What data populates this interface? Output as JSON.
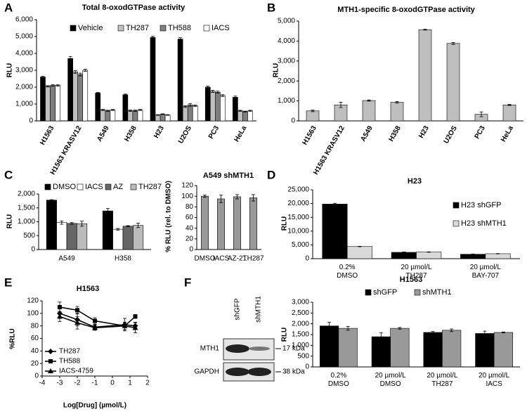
{
  "panel_labels": [
    "A",
    "B",
    "C",
    "D",
    "E",
    "F"
  ],
  "chart_data": [
    {
      "type": "bar",
      "title": "Total 8-oxodGTPase activity",
      "y_label": "RLU",
      "categories": [
        "H1563",
        "H1563 KRASV12",
        "A549",
        "H358",
        "H23",
        "U2OS",
        "PC3",
        "HeLa"
      ],
      "series": [
        {
          "name": "Vehicle",
          "color": "#000000",
          "values": [
            2600,
            3700,
            1650,
            1550,
            4950,
            4850,
            2000,
            1400
          ],
          "errors": [
            40,
            120,
            40,
            40,
            60,
            80,
            60,
            70
          ]
        },
        {
          "name": "TH287",
          "color": "#bfbfbf",
          "values": [
            2050,
            2900,
            650,
            600,
            350,
            850,
            1750,
            600
          ],
          "errors": [
            40,
            80,
            30,
            40,
            20,
            50,
            60,
            30
          ]
        },
        {
          "name": "TH588",
          "color": "#7f7f7f",
          "values": [
            2100,
            2750,
            600,
            600,
            400,
            950,
            1700,
            550
          ],
          "errors": [
            40,
            80,
            30,
            40,
            20,
            80,
            60,
            30
          ]
        },
        {
          "name": "IACS",
          "color": "#ffffff",
          "values": [
            2100,
            3000,
            650,
            650,
            350,
            900,
            1500,
            600
          ],
          "errors": [
            40,
            60,
            30,
            30,
            20,
            40,
            50,
            30
          ]
        }
      ],
      "ylim": [
        0,
        6000
      ],
      "yticks": [
        0,
        {
          "value": 1000,
          "label": "1,000"
        },
        {
          "value": 2000,
          "label": "2,000"
        },
        {
          "value": 3000,
          "label": "3,000"
        },
        {
          "value": 4000,
          "label": "4,000"
        },
        {
          "value": 5000,
          "label": "5,000"
        },
        {
          "value": 6000,
          "label": "6,000"
        }
      ]
    },
    {
      "type": "bar",
      "title": "MTH1-specific 8-oxodGTPase activity",
      "y_label": "RLU",
      "categories": [
        "H1563",
        "H1563 KRASV12",
        "A549",
        "H358",
        "H23",
        "U2OS",
        "PC3",
        "HeLa"
      ],
      "color": "#bfbfbf",
      "values": [
        500,
        800,
        1020,
        930,
        4570,
        3880,
        330,
        800
      ],
      "errors": [
        40,
        130,
        30,
        40,
        20,
        50,
        120,
        30
      ],
      "ylim": [
        0,
        5000
      ],
      "yticks": [
        0,
        {
          "value": 1000,
          "label": "1,000"
        },
        {
          "value": 2000,
          "label": "2,000"
        },
        {
          "value": 3000,
          "label": "3,000"
        },
        {
          "value": 4000,
          "label": "4,000"
        },
        {
          "value": 5000,
          "label": "5,000"
        }
      ]
    },
    {
      "type": "bar",
      "y_label": "RLU",
      "categories": [
        "A549",
        "H358"
      ],
      "series": [
        {
          "name": "DMSO",
          "color": "#000000",
          "values": [
            1780,
            1390
          ],
          "errors": [
            15,
            90
          ]
        },
        {
          "name": "IACS",
          "color": "#ffffff",
          "values": [
            970,
            730
          ],
          "errors": [
            60,
            30
          ]
        },
        {
          "name": "AZ",
          "color": "#666666",
          "values": [
            940,
            840
          ],
          "errors": [
            30,
            20
          ]
        },
        {
          "name": "TH287",
          "color": "#bbbbbb",
          "values": [
            930,
            870
          ],
          "errors": [
            90,
            80
          ]
        }
      ],
      "ylim": [
        0,
        2000
      ],
      "yticks": [
        0,
        500,
        {
          "value": 1000,
          "label": "1,000"
        },
        {
          "value": 1500,
          "label": "1,500"
        },
        {
          "value": 2000,
          "label": "2,000"
        }
      ]
    },
    {
      "type": "bar",
      "title": "A549 shMTH1",
      "y_label": "% RLU (rel. to DMSO)",
      "categories": [
        "DMSO",
        "IACS",
        "AZ-21",
        "TH287"
      ],
      "color": "#999999",
      "values": [
        100,
        95,
        99,
        97
      ],
      "errors": [
        2,
        7,
        4,
        6
      ],
      "ylim": [
        0,
        120
      ],
      "yticks": [
        0,
        20,
        40,
        60,
        80,
        100,
        120
      ]
    },
    {
      "type": "bar",
      "title": "H23",
      "y_label": "RLU",
      "categories": [
        [
          "0.2%",
          "DMSO"
        ],
        [
          "20 µmol/L",
          "TH287"
        ],
        [
          "20 µmol/L",
          "BAY-707"
        ]
      ],
      "series": [
        {
          "name": "H23 shGFP",
          "color": "#000000",
          "values": [
            19800,
            2300,
            1600
          ],
          "errors": [
            300,
            150,
            100
          ]
        },
        {
          "name": "H23 shMTH1",
          "color": "#d9d9d9",
          "values": [
            4400,
            2400,
            1800
          ],
          "errors": [
            80,
            80,
            60
          ]
        }
      ],
      "ylim": [
        0,
        25000
      ],
      "yticks": [
        0,
        {
          "value": 5000,
          "label": "5,000"
        },
        {
          "value": 10000,
          "label": "10,000"
        },
        {
          "value": 15000,
          "label": "15,000"
        },
        {
          "value": 20000,
          "label": "20,000"
        },
        {
          "value": 25000,
          "label": "25,000"
        }
      ]
    },
    {
      "type": "bar",
      "title": "H1563",
      "y_label": "RLU",
      "categories": [
        [
          "0.2%",
          "DMSO"
        ],
        [
          "20 µmol/L",
          "DMSO"
        ],
        [
          "20 µmol/L",
          "TH287"
        ],
        [
          "20 µmol/L",
          "IACS"
        ]
      ],
      "series": [
        {
          "name": "shGFP",
          "color": "#000000",
          "values": [
            1900,
            1400,
            1600,
            1550
          ],
          "errors": [
            170,
            190,
            40,
            110
          ]
        },
        {
          "name": "shMTH1",
          "color": "#999999",
          "values": [
            1790,
            1790,
            1700,
            1600
          ],
          "errors": [
            90,
            40,
            60,
            20
          ]
        }
      ],
      "ylim": [
        0,
        3000
      ],
      "yticks": [
        0,
        500,
        {
          "value": 1000,
          "label": "1,000"
        },
        {
          "value": 1500,
          "label": "1,500"
        },
        {
          "value": 2000,
          "label": "2,000"
        },
        {
          "value": 2500,
          "label": "2,500"
        },
        {
          "value": 3000,
          "label": "3,000"
        }
      ]
    },
    {
      "type": "line",
      "title": "H1563",
      "y_label": "%RLU",
      "x_label": "Log[Drug] (µmol/L)",
      "x": [
        -3,
        -2,
        -1,
        0.7,
        1.3
      ],
      "series": [
        {
          "name": "TH287",
          "color": "#000000",
          "marker": "diamond",
          "values": [
            100,
            90,
            78,
            82,
            80
          ],
          "errors": [
            8,
            10,
            4,
            10,
            6
          ]
        },
        {
          "name": "TH588",
          "color": "#000000",
          "marker": "square",
          "values": [
            110,
            105,
            88,
            80,
            95
          ],
          "errors": [
            8,
            6,
            5,
            6,
            3
          ]
        },
        {
          "name": "IACS-4759",
          "color": "#000000",
          "marker": "triangle",
          "values": [
            95,
            85,
            77,
            80,
            77
          ],
          "errors": [
            8,
            10,
            4,
            6,
            8
          ]
        }
      ],
      "xlim": [
        -4,
        2
      ],
      "xticks": [
        -4,
        -3,
        -2,
        -1,
        0,
        1,
        2
      ],
      "ylim": [
        0,
        120
      ],
      "yticks": [
        0,
        20,
        40,
        60,
        80,
        100,
        120
      ]
    }
  ],
  "blot": {
    "lanes": [
      "shGFP",
      "shMTH1"
    ],
    "rows": [
      "MTH1",
      "GAPDH"
    ],
    "markers": [
      "17 kDa",
      "38 kDa"
    ]
  }
}
